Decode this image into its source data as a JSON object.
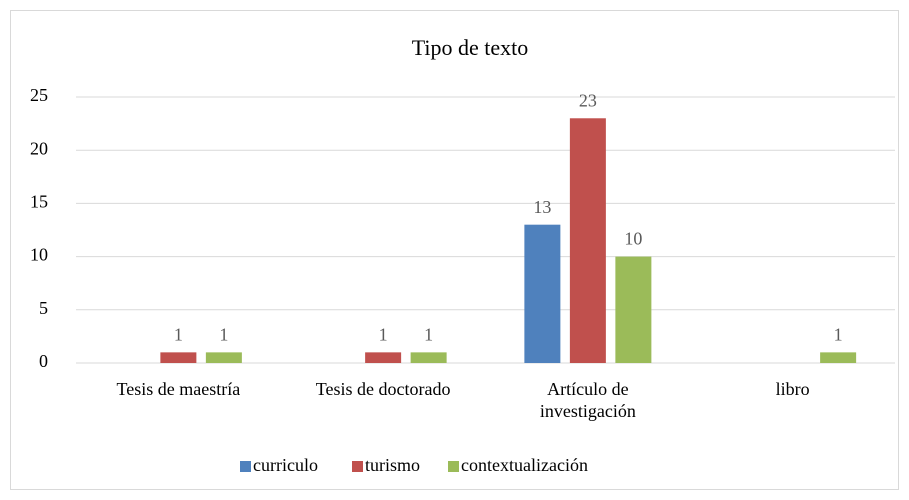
{
  "chart_data": {
    "type": "bar",
    "title": "Tipo de texto",
    "categories": [
      "Tesis de maestría",
      "Tesis de doctorado",
      "Artículo de investigación",
      "libro"
    ],
    "series": [
      {
        "name": "curriculo",
        "color": "#4f81bd",
        "values": [
          null,
          null,
          13,
          null
        ]
      },
      {
        "name": "turismo",
        "color": "#c0504d",
        "values": [
          1,
          1,
          23,
          null
        ]
      },
      {
        "name": "contextualización",
        "color": "#9bbb59",
        "values": [
          1,
          1,
          10,
          1
        ]
      }
    ],
    "ylim": [
      0,
      25
    ],
    "yticks": [
      0,
      5,
      10,
      15,
      20,
      25
    ],
    "grid": true,
    "legend": "bottom"
  }
}
